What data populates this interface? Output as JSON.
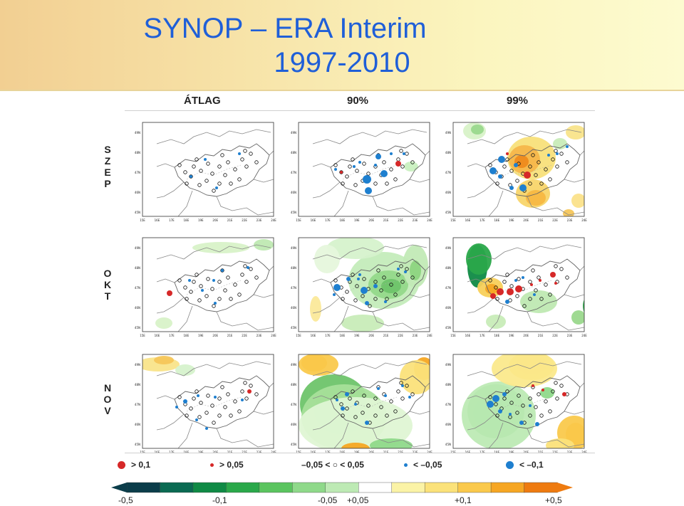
{
  "title": {
    "line1": "SYNOP – ERA Interim",
    "line2": "1997-2010"
  },
  "columns": [
    "ÁTLAG",
    "90%",
    "99%"
  ],
  "rows": [
    {
      "letters": [
        "S",
        "Z",
        "E",
        "P"
      ]
    },
    {
      "letters": [
        "O",
        "K",
        "T"
      ]
    },
    {
      "letters": [
        "N",
        "O",
        "V"
      ]
    }
  ],
  "lat_labels": [
    "49N",
    "48N",
    "47N",
    "46N",
    "45N"
  ],
  "lon_labels": [
    "15E",
    "16E",
    "17E",
    "18E",
    "19E",
    "20E",
    "21E",
    "22E",
    "23E",
    "24E"
  ],
  "legend": [
    {
      "label": "> 0,1",
      "marker": "large-red-dot",
      "color": "#d62828"
    },
    {
      "label": "> 0,05",
      "marker": "small-red-dot",
      "color": "#d62828"
    },
    {
      "label": "–0,05 < ○ < 0,05",
      "marker": "hollow-circle",
      "color": "#000000"
    },
    {
      "label": "< –0,05",
      "marker": "small-blue-dot",
      "color": "#1e7fcf"
    },
    {
      "label": "< –0,1",
      "marker": "large-blue-dot",
      "color": "#1e7fcf"
    }
  ],
  "colorbar": {
    "labels": [
      "-0,5",
      "-0,1",
      "-0,05",
      "+0,05",
      "+0,1",
      "+0,5"
    ],
    "colors": [
      "#0b3d4a",
      "#0a6a52",
      "#0f8a45",
      "#2aa84a",
      "#5bc45f",
      "#8fd98a",
      "#bdeab4",
      "#ffffff",
      "#fbf3a6",
      "#fbe27a",
      "#fac94c",
      "#f6a623",
      "#ee7b10"
    ]
  },
  "colors": {
    "title": "#1f5fd8",
    "positive_marker": "#d62828",
    "negative_marker": "#1e7fcf"
  }
}
